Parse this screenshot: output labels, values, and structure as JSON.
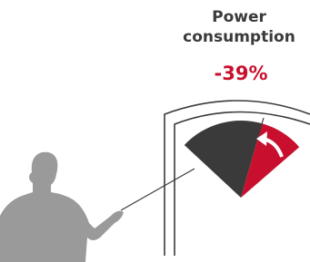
{
  "title_lines": [
    "Power",
    "consumption"
  ],
  "change": "-39%"
}
